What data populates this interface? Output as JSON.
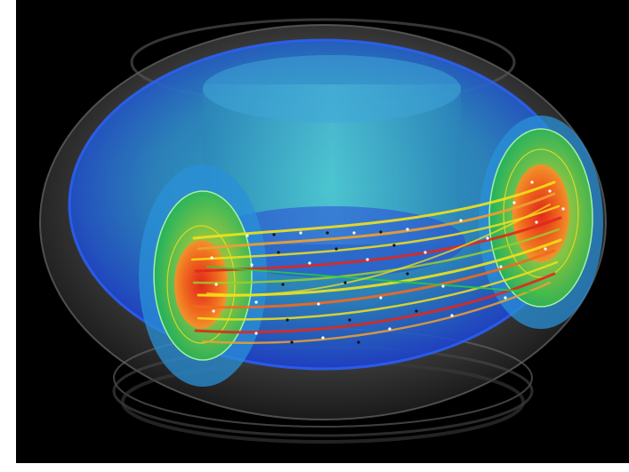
{
  "image": {
    "subject": "tokamak-magnetic-field-lines",
    "colors": {
      "background": "#000000",
      "outer_shell": "#8a8a8a",
      "blue_flux_surface": "#1e56e6",
      "cyan_flux_surface": "#3ec9d8",
      "green_flux_surface": "#27d13a",
      "orange_core": "#f06a1e",
      "red_core": "#e0281c",
      "yellow_field_line": "#f2e21a",
      "marker_white": "#ffffff",
      "marker_black": "#111111"
    }
  }
}
